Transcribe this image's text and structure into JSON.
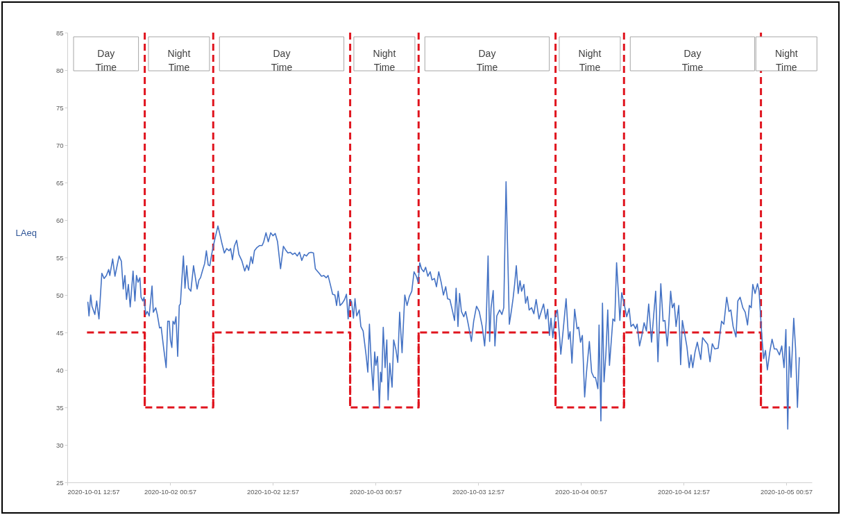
{
  "chart_data": {
    "type": "line",
    "ylabel": "LAeq",
    "xlim": [
      "2020-10-01T12:57",
      "2020-10-05T03:57"
    ],
    "xticks": [
      {
        "value": "2020-10-01T12:57",
        "label": "2020-10-01 12:57"
      },
      {
        "value": "2020-10-02T00:57",
        "label": "2020-10-02 00:57"
      },
      {
        "value": "2020-10-02T12:57",
        "label": "2020-10-02 12:57"
      },
      {
        "value": "2020-10-03T00:57",
        "label": "2020-10-03 00:57"
      },
      {
        "value": "2020-10-03T12:57",
        "label": "2020-10-03 12:57"
      },
      {
        "value": "2020-10-04T00:57",
        "label": "2020-10-04 00:57"
      },
      {
        "value": "2020-10-04T12:57",
        "label": "2020-10-04 12:57"
      },
      {
        "value": "2020-10-05T00:57",
        "label": "2020-10-05 00:57"
      }
    ],
    "ylim": [
      25,
      85
    ],
    "yticks": [
      25,
      30,
      35,
      40,
      45,
      50,
      55,
      60,
      65,
      70,
      75,
      80,
      85
    ],
    "series": [
      {
        "color": "#4472c4",
        "x": [
          "2020-10-01T15:21",
          "2020-10-01T15:29",
          "2020-10-01T15:41",
          "2020-10-01T15:50",
          "2020-10-01T16:10",
          "2020-10-01T16:23",
          "2020-10-01T16:39",
          "2020-10-01T16:59",
          "2020-10-01T17:15",
          "2020-10-01T17:31",
          "2020-10-01T17:47",
          "2020-10-01T17:55",
          "2020-10-01T18:15",
          "2020-10-01T18:31",
          "2020-10-01T19:00",
          "2020-10-01T19:16",
          "2020-10-01T19:29",
          "2020-10-01T19:41",
          "2020-10-01T19:52",
          "2020-10-01T20:05",
          "2020-10-01T20:18",
          "2020-10-01T20:38",
          "2020-10-01T20:51",
          "2020-10-01T21:02",
          "2020-10-01T21:13",
          "2020-10-01T21:26",
          "2020-10-01T21:34",
          "2020-10-01T21:46",
          "2020-10-01T21:55",
          "2020-10-01T22:07",
          "2020-10-01T22:18",
          "2020-10-01T22:31",
          "2020-10-01T22:51",
          "2020-10-01T23:00",
          "2020-10-01T23:17",
          "2020-10-01T23:28",
          "2020-10-01T23:44",
          "2020-10-01T23:55",
          "2020-10-02T00:12",
          "2020-10-02T00:30",
          "2020-10-02T00:41",
          "2020-10-02T00:52",
          "2020-10-02T01:00",
          "2020-10-02T01:10",
          "2020-10-02T01:18",
          "2020-10-02T01:29",
          "2020-10-02T01:39",
          "2020-10-02T01:51",
          "2020-10-02T02:02",
          "2020-10-02T02:10",
          "2020-10-02T02:18",
          "2020-10-02T02:31",
          "2020-10-02T02:42",
          "2020-10-02T02:54",
          "2020-10-02T03:07",
          "2020-10-02T03:23",
          "2020-10-02T03:42",
          "2020-10-02T03:55",
          "2020-10-02T04:07",
          "2020-10-02T04:20",
          "2020-10-02T04:31",
          "2020-10-02T04:44",
          "2020-10-02T05:00",
          "2020-10-02T05:12",
          "2020-10-02T05:25",
          "2020-10-02T05:36",
          "2020-10-02T05:49",
          "2020-10-02T06:05",
          "2020-10-02T06:17",
          "2020-10-02T06:33",
          "2020-10-02T06:49",
          "2020-10-02T07:02",
          "2020-10-02T07:18",
          "2020-10-02T07:34",
          "2020-10-02T07:51",
          "2020-10-02T08:02",
          "2020-10-02T08:15",
          "2020-10-02T08:28",
          "2020-10-02T08:44",
          "2020-10-02T09:00",
          "2020-10-02T09:20",
          "2020-10-02T09:41",
          "2020-10-02T09:56",
          "2020-10-02T10:08",
          "2020-10-02T10:25",
          "2020-10-02T10:36",
          "2020-10-02T10:49",
          "2020-10-02T11:05",
          "2020-10-02T11:26",
          "2020-10-02T11:43",
          "2020-10-02T11:54",
          "2020-10-02T12:10",
          "2020-10-02T12:26",
          "2020-10-02T12:43",
          "2020-10-02T12:59",
          "2020-10-02T13:15",
          "2020-10-02T13:31",
          "2020-10-02T13:52",
          "2020-10-02T14:12",
          "2020-10-02T14:28",
          "2020-10-02T14:44",
          "2020-10-02T15:00",
          "2020-10-02T15:17",
          "2020-10-02T15:33",
          "2020-10-02T15:49",
          "2020-10-02T16:05",
          "2020-10-02T16:21",
          "2020-10-02T16:38",
          "2020-10-02T16:54",
          "2020-10-02T17:10",
          "2020-10-02T17:26",
          "2020-10-02T17:43",
          "2020-10-02T17:56",
          "2020-10-02T18:23",
          "2020-10-02T18:39",
          "2020-10-02T18:55",
          "2020-10-02T19:12",
          "2020-10-02T19:25",
          "2020-10-02T19:41",
          "2020-10-02T19:57",
          "2020-10-02T20:13",
          "2020-10-02T20:25",
          "2020-10-02T20:36",
          "2020-10-02T20:49",
          "2020-10-02T21:05",
          "2020-10-02T21:21",
          "2020-10-02T21:34",
          "2020-10-02T21:46",
          "2020-10-02T21:57",
          "2020-10-02T22:10",
          "2020-10-02T22:23",
          "2020-10-02T22:34",
          "2020-10-02T22:46",
          "2020-10-02T23:04",
          "2020-10-02T23:15",
          "2020-10-02T23:31",
          "2020-10-02T23:51",
          "2020-10-03T00:04",
          "2020-10-03T00:15",
          "2020-10-03T00:28",
          "2020-10-03T00:41",
          "2020-10-03T00:52",
          "2020-10-03T01:00",
          "2020-10-03T01:12",
          "2020-10-03T01:25",
          "2020-10-03T01:33",
          "2020-10-03T01:41",
          "2020-10-03T01:52",
          "2020-10-03T02:05",
          "2020-10-03T02:17",
          "2020-10-03T02:26",
          "2020-10-03T02:38",
          "2020-10-03T02:54",
          "2020-10-03T03:05",
          "2020-10-03T03:21",
          "2020-10-03T03:34",
          "2020-10-03T03:47",
          "2020-10-03T04:04",
          "2020-10-03T04:23",
          "2020-10-03T04:39",
          "2020-10-03T04:55",
          "2020-10-03T05:12",
          "2020-10-03T05:28",
          "2020-10-03T05:44",
          "2020-10-03T05:57",
          "2020-10-03T06:08",
          "2020-10-03T06:20",
          "2020-10-03T06:36",
          "2020-10-03T06:49",
          "2020-10-03T07:05",
          "2020-10-03T07:21",
          "2020-10-03T07:34",
          "2020-10-03T07:51",
          "2020-10-03T08:05",
          "2020-10-03T08:21",
          "2020-10-03T08:38",
          "2020-10-03T08:54",
          "2020-10-03T09:10",
          "2020-10-03T09:23",
          "2020-10-03T09:39",
          "2020-10-03T09:56",
          "2020-10-03T10:12",
          "2020-10-03T10:23",
          "2020-10-03T10:36",
          "2020-10-03T10:47",
          "2020-10-03T11:00",
          "2020-10-03T11:17",
          "2020-10-03T11:30",
          "2020-10-03T11:49",
          "2020-10-03T12:10",
          "2020-10-03T12:26",
          "2020-10-03T12:46",
          "2020-10-03T13:05",
          "2020-10-03T13:26",
          "2020-10-03T13:43",
          "2020-10-03T13:54",
          "2020-10-03T14:07",
          "2020-10-03T14:18",
          "2020-10-03T14:28",
          "2020-10-03T14:43",
          "2020-10-03T14:55",
          "2020-10-03T15:08",
          "2020-10-03T15:28",
          "2020-10-03T15:44",
          "2020-10-03T15:57",
          "2020-10-03T16:13",
          "2020-10-03T16:25",
          "2020-10-03T16:36",
          "2020-10-03T16:49",
          "2020-10-03T17:02",
          "2020-10-03T17:13",
          "2020-10-03T17:25",
          "2020-10-03T17:38",
          "2020-10-03T17:51",
          "2020-10-03T18:02",
          "2020-10-03T18:18",
          "2020-10-03T18:30",
          "2020-10-03T18:43",
          "2020-10-03T18:55",
          "2020-10-03T19:12",
          "2020-10-03T19:28",
          "2020-10-03T19:44",
          "2020-10-03T20:04",
          "2020-10-03T20:20",
          "2020-10-03T20:36",
          "2020-10-03T20:52",
          "2020-10-03T21:05",
          "2020-10-03T21:17",
          "2020-10-03T21:28",
          "2020-10-03T21:41",
          "2020-10-03T21:57",
          "2020-10-03T22:13",
          "2020-10-03T22:30",
          "2020-10-03T22:37",
          "2020-10-03T22:53",
          "2020-10-03T23:14",
          "2020-10-03T23:31",
          "2020-10-03T23:42",
          "2020-10-03T23:55",
          "2020-10-04T00:14",
          "2020-10-04T00:31",
          "2020-10-04T00:42",
          "2020-10-04T00:55",
          "2020-10-04T01:08",
          "2020-10-04T01:24",
          "2020-10-04T01:37",
          "2020-10-04T01:57",
          "2020-10-04T02:13",
          "2020-10-04T02:29",
          "2020-10-04T02:40",
          "2020-10-04T02:57",
          "2020-10-04T03:05",
          "2020-10-04T03:18",
          "2020-10-04T03:29",
          "2020-10-04T03:40",
          "2020-10-04T03:53",
          "2020-10-04T04:06",
          "2020-10-04T04:18",
          "2020-10-04T04:29",
          "2020-10-04T04:42",
          "2020-10-04T04:55",
          "2020-10-04T05:08",
          "2020-10-04T05:23",
          "2020-10-04T05:31",
          "2020-10-04T05:44",
          "2020-10-04T06:03",
          "2020-10-04T06:19",
          "2020-10-04T06:36",
          "2020-10-04T06:49",
          "2020-10-04T07:05",
          "2020-10-04T07:21",
          "2020-10-04T07:32",
          "2020-10-04T07:49",
          "2020-10-04T08:05",
          "2020-10-04T08:21",
          "2020-10-04T08:37",
          "2020-10-04T08:53",
          "2020-10-04T09:13",
          "2020-10-04T09:26",
          "2020-10-04T09:42",
          "2020-10-04T09:58",
          "2020-10-04T10:18",
          "2020-10-04T10:34",
          "2020-10-04T10:47",
          "2020-10-04T11:03",
          "2020-10-04T11:14",
          "2020-10-04T11:27",
          "2020-10-04T11:39",
          "2020-10-04T11:52",
          "2020-10-04T12:05",
          "2020-10-04T12:24",
          "2020-10-04T12:37",
          "2020-10-04T12:49",
          "2020-10-04T13:05",
          "2020-10-04T13:21",
          "2020-10-04T13:37",
          "2020-10-04T13:50",
          "2020-10-04T14:02",
          "2020-10-04T14:18",
          "2020-10-04T14:34",
          "2020-10-04T14:58",
          "2020-10-04T15:11",
          "2020-10-04T15:31",
          "2020-10-04T15:47",
          "2020-10-04T16:03",
          "2020-10-04T16:19",
          "2020-10-04T16:36",
          "2020-10-04T17:00",
          "2020-10-04T17:24",
          "2020-10-04T17:40",
          "2020-10-04T18:00",
          "2020-10-04T18:16",
          "2020-10-04T18:29",
          "2020-10-04T18:45",
          "2020-10-04T19:05",
          "2020-10-04T19:18",
          "2020-10-04T19:34",
          "2020-10-04T19:53",
          "2020-10-04T20:10",
          "2020-10-04T20:26",
          "2020-10-04T20:39",
          "2020-10-04T20:52",
          "2020-10-04T21:03",
          "2020-10-04T21:19",
          "2020-10-04T21:36",
          "2020-10-04T21:47",
          "2020-10-04T21:57",
          "2020-10-04T22:08",
          "2020-10-04T22:19",
          "2020-10-04T22:32",
          "2020-10-04T22:45",
          "2020-10-04T23:02",
          "2020-10-04T23:18",
          "2020-10-04T23:34",
          "2020-10-04T23:50",
          "2020-10-05T00:10",
          "2020-10-05T00:26",
          "2020-10-05T00:42",
          "2020-10-05T00:55",
          "2020-10-05T01:08",
          "2020-10-05T01:19",
          "2020-10-05T01:31",
          "2020-10-05T01:50",
          "2020-10-05T02:03",
          "2020-10-05T02:16",
          "2020-10-05T02:29"
        ],
        "values": [
          49.1,
          47.2,
          50.0,
          48.5,
          47.4,
          49.2,
          46.8,
          52.9,
          52.2,
          52.6,
          53.4,
          52.6,
          54.8,
          52.5,
          55.2,
          54.5,
          50.8,
          52.6,
          49.4,
          51.4,
          48.4,
          53.2,
          49.2,
          52.6,
          51.7,
          52.3,
          49.7,
          49.2,
          49.7,
          47.4,
          47.8,
          47.2,
          51.2,
          47.7,
          48.3,
          47.4,
          45.6,
          45.7,
          43.0,
          40.3,
          46.5,
          46.5,
          44.0,
          43.0,
          46.5,
          46.1,
          47.1,
          41.8,
          48.6,
          48.8,
          51.4,
          55.2,
          50.9,
          53.9,
          50.9,
          50.5,
          53.9,
          52.3,
          50.8,
          52.0,
          52.3,
          53.2,
          54.2,
          55.9,
          54.0,
          53.9,
          55.4,
          56.9,
          57.9,
          59.2,
          57.9,
          56.8,
          55.6,
          56.2,
          55.9,
          56.2,
          54.7,
          56.5,
          57.3,
          55.4,
          54.6,
          53.2,
          54.0,
          53.3,
          55.1,
          54.2,
          55.9,
          56.3,
          56.6,
          56.6,
          57.1,
          58.3,
          57.1,
          58.3,
          57.9,
          58.2,
          57.1,
          53.5,
          56.5,
          56.0,
          55.6,
          55.7,
          55.4,
          55.6,
          55.2,
          55.7,
          54.6,
          55.4,
          55.2,
          55.6,
          55.7,
          55.6,
          53.5,
          52.9,
          52.5,
          52.6,
          52.3,
          52.6,
          51.4,
          50.1,
          50.0,
          48.6,
          50.5,
          48.6,
          48.9,
          49.4,
          50.1,
          46.8,
          49.4,
          49.1,
          46.9,
          49.5,
          47.2,
          48.0,
          45.8,
          45.2,
          42.1,
          39.7,
          46.1,
          40.9,
          37.3,
          42.4,
          40.6,
          41.8,
          35.0,
          39.7,
          38.4,
          45.7,
          40.3,
          44.0,
          36.0,
          40.9,
          37.7,
          44.0,
          42.7,
          41.0,
          47.7,
          42.3,
          50.0,
          48.6,
          49.8,
          50.5,
          53.1,
          52.5,
          51.7,
          54.3,
          53.5,
          53.1,
          53.7,
          52.5,
          53.1,
          52.0,
          52.2,
          51.1,
          53.1,
          51.7,
          50.0,
          51.1,
          49.5,
          49.4,
          48.0,
          46.6,
          50.9,
          45.8,
          50.2,
          47.8,
          47.1,
          47.8,
          46.0,
          43.8,
          46.5,
          48.5,
          47.8,
          45.8,
          43.2,
          46.5,
          55.2,
          43.8,
          48.3,
          50.6,
          43.2,
          47.2,
          48.0,
          47.4,
          48.3,
          65.1,
          55.4,
          46.1,
          47.7,
          49.5,
          51.4,
          53.9,
          50.2,
          51.9,
          50.5,
          51.4,
          48.9,
          49.8,
          48.0,
          48.3,
          47.5,
          49.4,
          46.8,
          47.8,
          48.8,
          46.8,
          48.1,
          44.6,
          46.9,
          44.3,
          47.1,
          48.0,
          44.0,
          42.1,
          45.2,
          49.5,
          44.1,
          45.1,
          40.9,
          48.1,
          45.5,
          45.7,
          43.7,
          44.6,
          36.4,
          39.7,
          43.8,
          39.7,
          39.0,
          39.0,
          37.5,
          46.0,
          33.2,
          48.9,
          38.4,
          42.1,
          48.0,
          40.6,
          43.4,
          46.8,
          46.5,
          54.3,
          49.5,
          46.6,
          50.3,
          48.6,
          47.1,
          48.2,
          45.8,
          46.1,
          45.5,
          46.1,
          43.2,
          44.6,
          46.3,
          45.2,
          48.8,
          43.7,
          46.8,
          50.5,
          41.1,
          51.5,
          46.5,
          46.6,
          43.2,
          46.1,
          50.5,
          48.3,
          48.9,
          45.8,
          48.6,
          40.7,
          46.6,
          44.9,
          43.1,
          40.3,
          42.0,
          40.3,
          42.4,
          43.7,
          41.4,
          44.3,
          43.8,
          43.4,
          41.1,
          43.5,
          42.8,
          42.9,
          46.5,
          46.1,
          49.7,
          47.8,
          48.0,
          45.8,
          44.4,
          49.2,
          49.7,
          48.3,
          47.7,
          46.0,
          48.6,
          48.3,
          51.4,
          50.2,
          51.5,
          50.5,
          47.4,
          44.0,
          41.5,
          42.6,
          40.0,
          42.4,
          44.1,
          42.8,
          42.8,
          42.0,
          43.2,
          40.3,
          45.4,
          32.1,
          43.1,
          39.0,
          46.9,
          42.8,
          35.0,
          41.7
        ]
      },
      {
        "type": "step",
        "color": "#e0141e",
        "line_style": "dashed",
        "x": [
          "2020-10-01T15:15",
          "2020-10-01T22:00",
          "2020-10-02T06:00",
          "2020-10-02T22:00",
          "2020-10-03T06:00",
          "2020-10-03T22:00",
          "2020-10-04T06:00",
          "2020-10-04T22:00",
          "2020-10-05T01:45"
        ],
        "values": [
          45,
          35,
          45,
          35,
          45,
          35,
          45,
          35,
          35
        ]
      }
    ],
    "ref_lines": [
      {
        "axis": "x",
        "value": "2020-10-01T22:00",
        "color": "#e0141e",
        "line_style": "dashed"
      },
      {
        "axis": "x",
        "value": "2020-10-02T06:00",
        "color": "#e0141e",
        "line_style": "dashed"
      },
      {
        "axis": "x",
        "value": "2020-10-02T22:00",
        "color": "#e0141e",
        "line_style": "dashed"
      },
      {
        "axis": "x",
        "value": "2020-10-03T06:00",
        "color": "#e0141e",
        "line_style": "dashed"
      },
      {
        "axis": "x",
        "value": "2020-10-03T22:00",
        "color": "#e0141e",
        "line_style": "dashed"
      },
      {
        "axis": "x",
        "value": "2020-10-04T06:00",
        "color": "#e0141e",
        "line_style": "dashed"
      },
      {
        "axis": "x",
        "value": "2020-10-04T22:00",
        "color": "#e0141e",
        "line_style": "dashed"
      }
    ],
    "annotations": [
      "Day Time",
      "Night Time",
      "Day Time",
      "Night Time",
      "Day Time",
      "Night Time",
      "Day Time",
      "Night Time"
    ]
  }
}
